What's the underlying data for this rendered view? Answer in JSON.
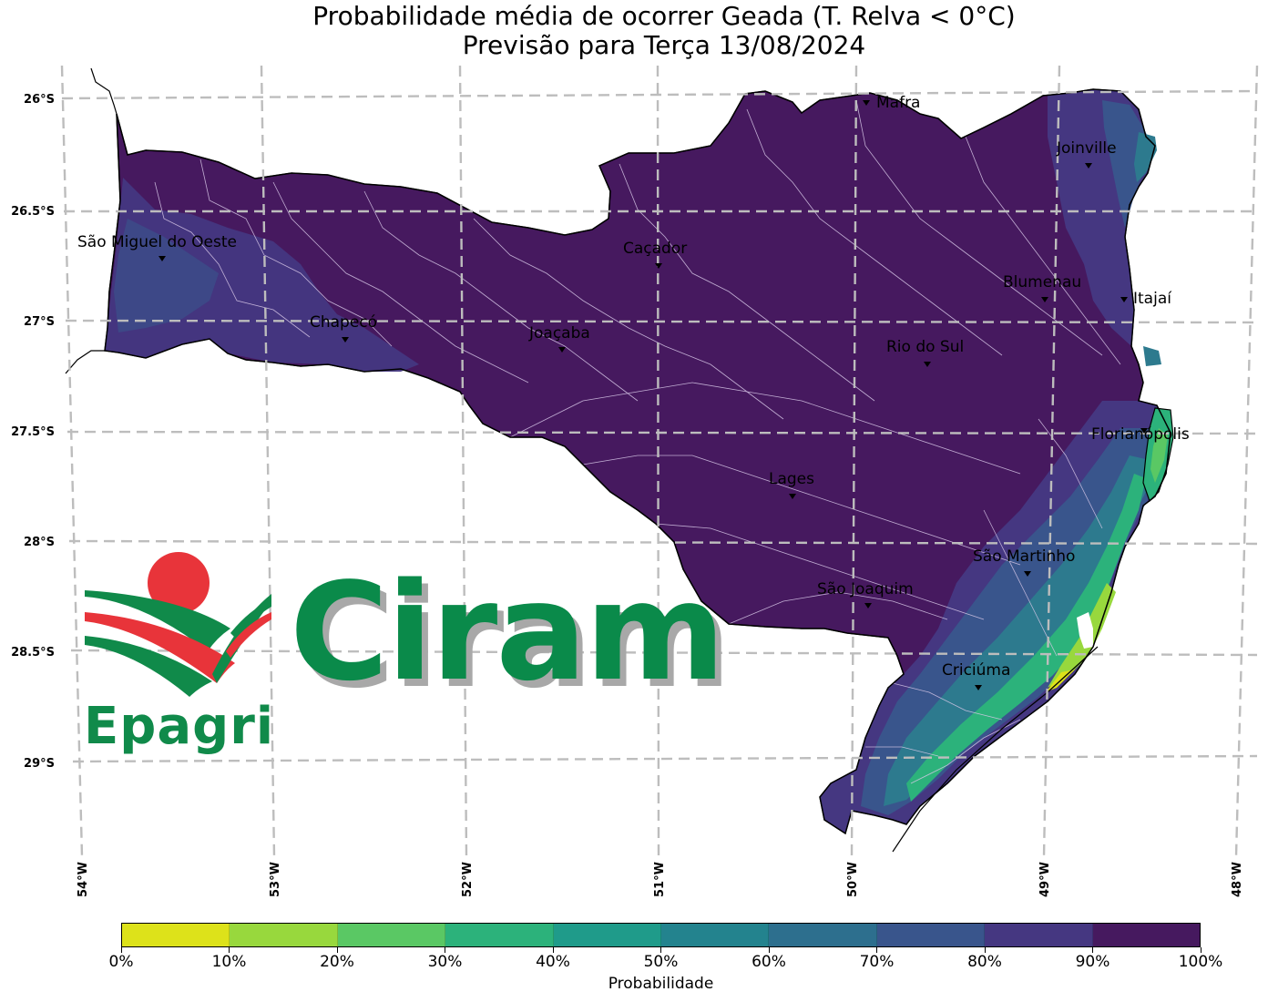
{
  "title": {
    "line1": "Probabilidade média de ocorrer Geada (T. Relva < 0°C)",
    "line2": "Previsão para Terça 13/08/2024"
  },
  "lat_labels": [
    "26°S",
    "26.5°S",
    "27°S",
    "27.5°S",
    "28°S",
    "28.5°S",
    "29°S"
  ],
  "lon_labels": [
    "54°W",
    "53°W",
    "52°W",
    "51°W",
    "50°W",
    "49°W",
    "48°W"
  ],
  "cities": [
    {
      "name": "Mafra"
    },
    {
      "name": "Joinville"
    },
    {
      "name": "São Miguel do Oeste"
    },
    {
      "name": "Caçador"
    },
    {
      "name": "Blumenau"
    },
    {
      "name": "Itajaí"
    },
    {
      "name": "Chapecó"
    },
    {
      "name": "Joaçaba"
    },
    {
      "name": "Rio do Sul"
    },
    {
      "name": "Florianópolis"
    },
    {
      "name": "Lages"
    },
    {
      "name": "São Martinho"
    },
    {
      "name": "São Joaquim"
    },
    {
      "name": "Criciúma"
    }
  ],
  "colorbar": {
    "title": "Probabilidade",
    "ticks": [
      "0%",
      "10%",
      "20%",
      "30%",
      "40%",
      "50%",
      "60%",
      "70%",
      "80%",
      "90%",
      "100%"
    ],
    "colors": [
      "#dde21a",
      "#98d83d",
      "#5ac864",
      "#2cb27b",
      "#1f9b8a",
      "#23838e",
      "#2d6f8e",
      "#39558c",
      "#453781",
      "#46195f"
    ]
  },
  "logo": {
    "brand1": "Epagri",
    "brand2": "Ciram"
  },
  "colors": {
    "high_prob": "#46195f",
    "p80_90": "#453781",
    "p70_80": "#39558c",
    "p50_60": "#2d7a8e",
    "p30_40": "#2cb27b",
    "p10_20": "#98d83d",
    "grid": "#bdbdbd",
    "logo_green": "#0a8a4a",
    "logo_red": "#e8343a"
  }
}
